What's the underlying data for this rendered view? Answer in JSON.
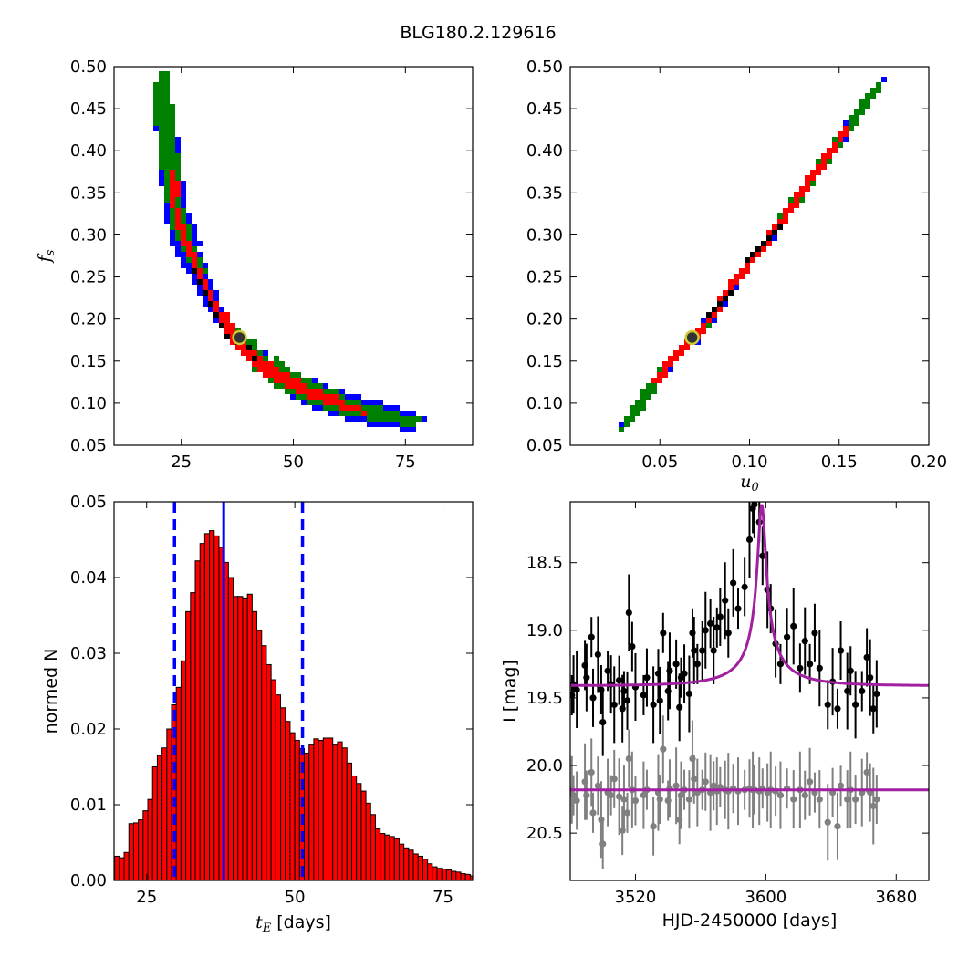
{
  "figure": {
    "title": "BLG180.2.129616"
  },
  "chart_data": [
    {
      "type": "heatmap",
      "id": "fs_vs_tE",
      "xlabel": "",
      "ylabel": "f_s",
      "xlim": [
        10,
        90
      ],
      "ylim": [
        0.05,
        0.5
      ],
      "xticks": [
        25,
        50,
        75
      ],
      "yticks": [
        0.05,
        0.1,
        0.15,
        0.2,
        0.25,
        0.3,
        0.35,
        0.4,
        0.45,
        0.5
      ],
      "colors": {
        "outer": "#0000ff",
        "middle": "#008000",
        "inner": "#ff0000",
        "core": "#000000"
      },
      "best_fit": {
        "x": 38,
        "y": 0.178
      },
      "ridge": [
        [
          20,
          0.49
        ],
        [
          21,
          0.43
        ],
        [
          22,
          0.39
        ],
        [
          23,
          0.35
        ],
        [
          24,
          0.32
        ],
        [
          26,
          0.29
        ],
        [
          28,
          0.265
        ],
        [
          30,
          0.24
        ],
        [
          32,
          0.22
        ],
        [
          34,
          0.2
        ],
        [
          36,
          0.185
        ],
        [
          38,
          0.178
        ],
        [
          40,
          0.165
        ],
        [
          43,
          0.15
        ],
        [
          47,
          0.135
        ],
        [
          52,
          0.12
        ],
        [
          57,
          0.11
        ],
        [
          62,
          0.1
        ],
        [
          67,
          0.093
        ],
        [
          72,
          0.087
        ],
        [
          77,
          0.08
        ]
      ]
    },
    {
      "type": "heatmap",
      "id": "fs_vs_u0",
      "xlabel": "u_0",
      "ylabel": "",
      "xlim": [
        0.0,
        0.2
      ],
      "ylim": [
        0.05,
        0.5
      ],
      "xticks": [
        0.05,
        0.1,
        0.15,
        0.2
      ],
      "yticks": [
        0.05,
        0.1,
        0.15,
        0.2,
        0.25,
        0.3,
        0.35,
        0.4,
        0.45,
        0.5
      ],
      "colors": {
        "outer": "#0000ff",
        "middle": "#008000",
        "inner": "#ff0000",
        "core": "#000000"
      },
      "best_fit": {
        "x": 0.068,
        "y": 0.178
      },
      "ridge": [
        [
          0.031,
          0.08
        ],
        [
          0.04,
          0.11
        ],
        [
          0.05,
          0.14
        ],
        [
          0.06,
          0.165
        ],
        [
          0.068,
          0.178
        ],
        [
          0.08,
          0.215
        ],
        [
          0.09,
          0.245
        ],
        [
          0.1,
          0.275
        ],
        [
          0.11,
          0.3
        ],
        [
          0.12,
          0.33
        ],
        [
          0.13,
          0.36
        ],
        [
          0.14,
          0.39
        ],
        [
          0.15,
          0.42
        ],
        [
          0.16,
          0.45
        ],
        [
          0.17,
          0.48
        ]
      ]
    },
    {
      "type": "bar",
      "id": "tE_histogram",
      "xlabel": "t_E [days]",
      "ylabel": "normed N",
      "xlim": [
        19.5,
        80
      ],
      "ylim": [
        0,
        0.05
      ],
      "xticks": [
        25,
        50,
        75
      ],
      "yticks": [
        0.0,
        0.01,
        0.02,
        0.03,
        0.04,
        0.05
      ],
      "bar_color": "#ff0000",
      "bin_width": 0.8,
      "bin_start": 19.6,
      "values": [
        0.0032,
        0.003,
        0.0037,
        0.0075,
        0.0076,
        0.008,
        0.0092,
        0.0107,
        0.015,
        0.0165,
        0.0175,
        0.02,
        0.0232,
        0.0255,
        0.029,
        0.0355,
        0.038,
        0.0422,
        0.0445,
        0.0458,
        0.0462,
        0.0455,
        0.044,
        0.042,
        0.04,
        0.0375,
        0.0375,
        0.0373,
        0.0378,
        0.0355,
        0.033,
        0.031,
        0.0285,
        0.0265,
        0.0245,
        0.0228,
        0.021,
        0.0195,
        0.0185,
        0.0174,
        0.0168,
        0.018,
        0.0187,
        0.0185,
        0.0188,
        0.0188,
        0.018,
        0.0183,
        0.0175,
        0.0155,
        0.0138,
        0.0128,
        0.0118,
        0.0102,
        0.0087,
        0.0068,
        0.0062,
        0.006,
        0.0058,
        0.0055,
        0.0048,
        0.0043,
        0.004,
        0.0035,
        0.0032,
        0.0028,
        0.0022,
        0.0018,
        0.0016,
        0.0015,
        0.0014,
        0.0012,
        0.0011,
        0.0009,
        0.0008,
        0.0006,
        0.0004
      ],
      "median": 38,
      "lower": 29.7,
      "upper": 51.3,
      "line_color": "#0000ff"
    },
    {
      "type": "scatter",
      "id": "light_curve",
      "xlabel": "HJD-2450000 [days]",
      "ylabel": "I [mag]",
      "xlim": [
        3480,
        3700
      ],
      "ylim": [
        20.85,
        18.05
      ],
      "xticks": [
        3520,
        3600,
        3680
      ],
      "yticks": [
        18.5,
        19.0,
        19.5,
        20.0,
        20.5
      ],
      "model_color": "#a020a0",
      "colors": {
        "data": "#000000",
        "residuals": "#808080"
      },
      "model": {
        "baseline": 19.41,
        "t0": 3597.5,
        "tE": 38,
        "u0": 0.068,
        "peak": 18.07,
        "residual_level": 20.18
      },
      "series": [
        {
          "name": "",
          "points": [
            [
              3481,
              19.48
            ],
            [
              3482,
              19.4
            ],
            [
              3484,
              19.44
            ],
            [
              3489,
              19.26
            ],
            [
              3490,
              19.35
            ],
            [
              3493,
              19.05
            ],
            [
              3494,
              19.5
            ],
            [
              3497,
              19.18
            ],
            [
              3499,
              19.44
            ],
            [
              3500,
              19.68
            ],
            [
              3503,
              19.3
            ],
            [
              3505,
              19.4
            ],
            [
              3507,
              19.55
            ],
            [
              3510,
              19.37
            ],
            [
              3512,
              19.58
            ],
            [
              3513,
              19.45
            ],
            [
              3515,
              19.52
            ],
            [
              3516,
              18.87
            ],
            [
              3518,
              19.12
            ],
            [
              3520,
              19.42
            ],
            [
              3525,
              19.48
            ],
            [
              3527,
              19.35
            ],
            [
              3531,
              19.55
            ],
            [
              3534,
              19.32
            ],
            [
              3535,
              19.52
            ],
            [
              3537,
              19.02
            ],
            [
              3540,
              19.45
            ],
            [
              3541,
              19.3
            ],
            [
              3545,
              19.25
            ],
            [
              3547,
              19.57
            ],
            [
              3548,
              19.35
            ],
            [
              3550,
              19.32
            ],
            [
              3553,
              19.47
            ],
            [
              3555,
              19.02
            ],
            [
              3556,
              19.15
            ],
            [
              3558,
              19.25
            ],
            [
              3561,
              19.15
            ],
            [
              3563,
              19.0
            ],
            [
              3566,
              18.95
            ],
            [
              3568,
              19.15
            ],
            [
              3570,
              18.98
            ],
            [
              3572,
              18.9
            ],
            [
              3575,
              18.78
            ],
            [
              3577,
              19.02
            ],
            [
              3580,
              18.65
            ],
            [
              3583,
              18.84
            ],
            [
              3587,
              18.68
            ],
            [
              3590,
              18.33
            ],
            [
              3592,
              18.1
            ],
            [
              3593,
              18.07
            ],
            [
              3596,
              18.2
            ],
            [
              3598,
              18.45
            ],
            [
              3601,
              18.7
            ],
            [
              3603,
              18.84
            ],
            [
              3606,
              19.1
            ],
            [
              3609,
              19.25
            ],
            [
              3613,
              19.05
            ],
            [
              3617,
              18.97
            ],
            [
              3621,
              19.28
            ],
            [
              3624,
              19.08
            ],
            [
              3627,
              19.25
            ],
            [
              3630,
              19.02
            ],
            [
              3633,
              19.28
            ],
            [
              3638,
              19.55
            ],
            [
              3641,
              19.38
            ],
            [
              3644,
              19.58
            ],
            [
              3646,
              19.15
            ],
            [
              3650,
              19.45
            ],
            [
              3652,
              19.3
            ],
            [
              3655,
              19.55
            ],
            [
              3659,
              19.45
            ],
            [
              3662,
              19.2
            ],
            [
              3664,
              19.35
            ],
            [
              3666,
              19.58
            ],
            [
              3668,
              19.47
            ]
          ]
        },
        {
          "name": "",
          "points": [
            [
              3481,
              20.18
            ],
            [
              3482,
              20.22
            ],
            [
              3484,
              20.26
            ],
            [
              3489,
              20.12
            ],
            [
              3490,
              20.22
            ],
            [
              3493,
              20.05
            ],
            [
              3494,
              20.35
            ],
            [
              3497,
              20.15
            ],
            [
              3499,
              20.4
            ],
            [
              3500,
              20.58
            ],
            [
              3503,
              20.2
            ],
            [
              3505,
              20.22
            ],
            [
              3507,
              20.1
            ],
            [
              3510,
              20.23
            ],
            [
              3512,
              20.48
            ],
            [
              3513,
              20.25
            ],
            [
              3515,
              20.35
            ],
            [
              3516,
              19.95
            ],
            [
              3518,
              20.18
            ],
            [
              3520,
              20.26
            ],
            [
              3525,
              20.22
            ],
            [
              3527,
              20.18
            ],
            [
              3531,
              20.45
            ],
            [
              3534,
              20.2
            ],
            [
              3535,
              20.25
            ],
            [
              3537,
              19.88
            ],
            [
              3540,
              20.26
            ],
            [
              3541,
              20.17
            ],
            [
              3545,
              20.15
            ],
            [
              3547,
              20.4
            ],
            [
              3548,
              20.22
            ],
            [
              3550,
              20.18
            ],
            [
              3553,
              20.25
            ],
            [
              3555,
              19.95
            ],
            [
              3556,
              20.1
            ],
            [
              3558,
              20.2
            ],
            [
              3561,
              20.18
            ],
            [
              3563,
              20.12
            ],
            [
              3566,
              20.2
            ],
            [
              3568,
              20.15
            ],
            [
              3570,
              20.19
            ],
            [
              3572,
              20.16
            ],
            [
              3575,
              20.18
            ],
            [
              3577,
              20.19
            ],
            [
              3580,
              20.17
            ],
            [
              3583,
              20.19
            ],
            [
              3587,
              20.18
            ],
            [
              3590,
              20.17
            ],
            [
              3592,
              20.18
            ],
            [
              3593,
              20.18
            ],
            [
              3596,
              20.19
            ],
            [
              3598,
              20.17
            ],
            [
              3601,
              20.2
            ],
            [
              3603,
              20.18
            ],
            [
              3606,
              20.19
            ],
            [
              3609,
              20.22
            ],
            [
              3613,
              20.17
            ],
            [
              3617,
              20.25
            ],
            [
              3621,
              20.18
            ],
            [
              3624,
              20.22
            ],
            [
              3627,
              20.12
            ],
            [
              3630,
              20.2
            ],
            [
              3633,
              20.25
            ],
            [
              3638,
              20.42
            ],
            [
              3641,
              20.2
            ],
            [
              3644,
              20.45
            ],
            [
              3646,
              20.15
            ],
            [
              3650,
              20.25
            ],
            [
              3652,
              20.18
            ],
            [
              3655,
              20.25
            ],
            [
              3659,
              20.2
            ],
            [
              3662,
              20.05
            ],
            [
              3664,
              20.2
            ],
            [
              3666,
              20.3
            ],
            [
              3668,
              20.25
            ]
          ]
        }
      ]
    }
  ]
}
